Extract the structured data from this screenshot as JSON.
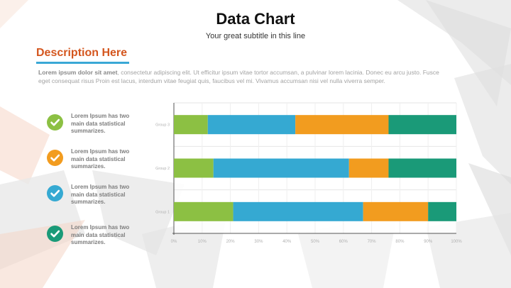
{
  "header": {
    "title": "Data Chart",
    "subtitle": "Your great subtitle in this line"
  },
  "description": {
    "heading": "Description Here",
    "lead": "Lorem ipsum dolor sit amet",
    "body": ", consectetur adipiscing elit. Ut efficitur ipsum vitae tortor accumsan, a pulvinar lorem lacinia. Donec eu arcu justo. Fusce eget consequat risus Proin est lacus, interdum vitae feugiat quis, faucibus vel mi.  Vivamus accumsan nisi vel nulla viverra semper."
  },
  "legend": [
    {
      "text": "Lorem Ipsum has two main data statistical summarizes.",
      "color": "#8cc043",
      "icon": "check-icon"
    },
    {
      "text": "Lorem Ipsum has two main data statistical summarizes.",
      "color": "#f29c1f",
      "icon": "check-icon"
    },
    {
      "text": "Lorem Ipsum has two main data statistical summarizes.",
      "color": "#35a9d2",
      "icon": "check-icon"
    },
    {
      "text": "Lorem Ipsum has two main data statistical summarizes.",
      "color": "#1a9a78",
      "icon": "check-icon"
    }
  ],
  "chart_data": {
    "type": "bar",
    "orientation": "horizontal",
    "stacked": true,
    "categories": [
      "Group 1",
      "Group 2",
      "Group 3"
    ],
    "series": [
      {
        "color": "#8cc043",
        "values": [
          21,
          14,
          12
        ]
      },
      {
        "color": "#35a9d2",
        "values": [
          46,
          48,
          31
        ]
      },
      {
        "color": "#f29c1f",
        "values": [
          23,
          14,
          33
        ]
      },
      {
        "color": "#1a9a78",
        "values": [
          10,
          24,
          24
        ]
      }
    ],
    "xlim": [
      0,
      100
    ],
    "x_ticks": [
      "0%",
      "10%",
      "20%",
      "30%",
      "40%",
      "50%",
      "60%",
      "70%",
      "80%",
      "90%",
      "100%"
    ],
    "grid": true
  }
}
